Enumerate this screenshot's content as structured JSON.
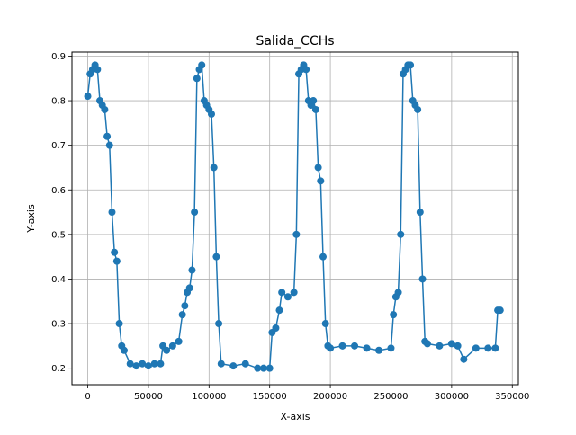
{
  "chart_data": {
    "type": "line",
    "title": "Salida_CCHs",
    "xlabel": "X-axis",
    "ylabel": "Y-axis",
    "xlim": [
      -13000,
      355000
    ],
    "ylim": [
      0.163,
      0.909
    ],
    "xticks": [
      0,
      50000,
      100000,
      150000,
      200000,
      250000,
      300000,
      350000
    ],
    "xtick_labels": [
      "0",
      "50000",
      "100000",
      "150000",
      "200000",
      "250000",
      "300000",
      "350000"
    ],
    "yticks": [
      0.2,
      0.3,
      0.4,
      0.5,
      0.6,
      0.7,
      0.8,
      0.9
    ],
    "ytick_labels": [
      "0.2",
      "0.3",
      "0.4",
      "0.5",
      "0.6",
      "0.7",
      "0.8",
      "0.9"
    ],
    "grid": true,
    "marker": "circle",
    "series": [
      {
        "color": "#1f77b4",
        "x": [
          0,
          2000,
          4000,
          6000,
          8000,
          10000,
          12000,
          14000,
          16000,
          18000,
          20000,
          22000,
          24000,
          26000,
          28000,
          30000,
          35000,
          40000,
          45000,
          50000,
          55000,
          60000,
          62000,
          65000,
          70000,
          75000,
          78000,
          80000,
          82000,
          84000,
          86000,
          88000,
          90000,
          92000,
          94000,
          96000,
          98000,
          100000,
          102000,
          104000,
          106000,
          108000,
          110000,
          120000,
          130000,
          140000,
          145000,
          150000,
          152000,
          155000,
          158000,
          160000,
          165000,
          170000,
          172000,
          174000,
          176000,
          178000,
          180000,
          182000,
          184000,
          186000,
          188000,
          190000,
          192000,
          194000,
          196000,
          198000,
          200000,
          210000,
          220000,
          230000,
          240000,
          250000,
          252000,
          254000,
          256000,
          258000,
          260000,
          262000,
          264000,
          266000,
          268000,
          270000,
          272000,
          274000,
          276000,
          278000,
          280000,
          290000,
          300000,
          305000,
          310000,
          320000,
          330000,
          336000,
          338000,
          340000
        ],
        "y": [
          0.81,
          0.86,
          0.87,
          0.88,
          0.87,
          0.8,
          0.79,
          0.78,
          0.72,
          0.7,
          0.55,
          0.46,
          0.44,
          0.3,
          0.25,
          0.24,
          0.21,
          0.205,
          0.21,
          0.205,
          0.21,
          0.21,
          0.25,
          0.24,
          0.25,
          0.26,
          0.32,
          0.34,
          0.37,
          0.38,
          0.42,
          0.55,
          0.85,
          0.87,
          0.88,
          0.8,
          0.79,
          0.78,
          0.77,
          0.65,
          0.45,
          0.3,
          0.21,
          0.205,
          0.21,
          0.2,
          0.2,
          0.2,
          0.28,
          0.29,
          0.33,
          0.37,
          0.36,
          0.37,
          0.5,
          0.86,
          0.87,
          0.88,
          0.87,
          0.8,
          0.79,
          0.8,
          0.78,
          0.65,
          0.62,
          0.45,
          0.3,
          0.25,
          0.245,
          0.25,
          0.25,
          0.245,
          0.24,
          0.245,
          0.32,
          0.36,
          0.37,
          0.5,
          0.86,
          0.87,
          0.88,
          0.88,
          0.8,
          0.79,
          0.78,
          0.55,
          0.4,
          0.26,
          0.255,
          0.25,
          0.255,
          0.25,
          0.22,
          0.245,
          0.245,
          0.245,
          0.33,
          0.33
        ]
      }
    ]
  }
}
